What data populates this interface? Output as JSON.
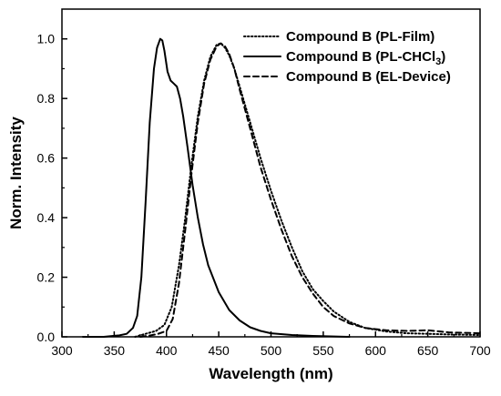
{
  "chart_data": {
    "type": "line",
    "xlabel": "Wavelength (nm)",
    "ylabel": "Norm. Intensity",
    "xlim": [
      300,
      700
    ],
    "ylim": [
      0,
      1.1
    ],
    "xticks": [
      300,
      350,
      400,
      450,
      500,
      550,
      600,
      650,
      700
    ],
    "yticks": [
      0.0,
      0.2,
      0.4,
      0.6,
      0.8,
      1.0
    ],
    "ytick_labels": [
      "0.0",
      "0.2",
      "0.4",
      "0.6",
      "0.8",
      "1.0"
    ],
    "legend_position": "top-right",
    "grid": false,
    "series": [
      {
        "name": "Compound B (PL-Film)",
        "legend_main": "Compound B (PL-Film)",
        "legend_sub": "",
        "legend_tail": "",
        "dash": "dotted",
        "x": [
          370,
          380,
          390,
          398,
          405,
          412,
          418,
          424,
          430,
          436,
          442,
          448,
          452,
          456,
          460,
          465,
          470,
          480,
          490,
          500,
          510,
          520,
          530,
          540,
          550,
          560,
          575,
          590,
          610,
          630,
          650,
          670,
          700
        ],
        "y": [
          0.0,
          0.01,
          0.02,
          0.04,
          0.1,
          0.24,
          0.4,
          0.58,
          0.74,
          0.86,
          0.94,
          0.98,
          0.985,
          0.97,
          0.945,
          0.9,
          0.84,
          0.72,
          0.6,
          0.49,
          0.39,
          0.3,
          0.22,
          0.16,
          0.12,
          0.085,
          0.05,
          0.03,
          0.018,
          0.012,
          0.01,
          0.008,
          0.006
        ]
      },
      {
        "name": "Compound B (PL-CHCl3)",
        "legend_main": "Compound B (PL-CHCl",
        "legend_sub": "3",
        "legend_tail": ")",
        "dash": "solid",
        "x": [
          320,
          340,
          355,
          362,
          368,
          372,
          376,
          380,
          384,
          388,
          391,
          394,
          396,
          398,
          401,
          404,
          407,
          410,
          413,
          416,
          420,
          425,
          430,
          435,
          440,
          450,
          460,
          470,
          480,
          490,
          500,
          520,
          540,
          575
        ],
        "y": [
          0.0,
          0.0,
          0.005,
          0.01,
          0.03,
          0.07,
          0.2,
          0.45,
          0.72,
          0.9,
          0.97,
          1.0,
          0.995,
          0.96,
          0.89,
          0.86,
          0.85,
          0.84,
          0.8,
          0.74,
          0.64,
          0.51,
          0.4,
          0.31,
          0.24,
          0.15,
          0.09,
          0.055,
          0.032,
          0.02,
          0.012,
          0.006,
          0.003,
          0.0
        ]
      },
      {
        "name": "Compound B (EL-Device)",
        "legend_main": "Compound B (EL-Device)",
        "legend_sub": "",
        "legend_tail": "",
        "dash": "dashed",
        "x": [
          375,
          385,
          392,
          400,
          406,
          412,
          418,
          424,
          430,
          436,
          442,
          448,
          452,
          456,
          460,
          465,
          470,
          480,
          490,
          500,
          510,
          520,
          530,
          540,
          550,
          560,
          575,
          590,
          610,
          630,
          650,
          670,
          700
        ],
        "y": [
          0.0,
          0.005,
          0.01,
          0.02,
          0.06,
          0.18,
          0.36,
          0.55,
          0.72,
          0.85,
          0.93,
          0.975,
          0.985,
          0.975,
          0.95,
          0.9,
          0.83,
          0.7,
          0.57,
          0.46,
          0.36,
          0.27,
          0.2,
          0.145,
          0.1,
          0.07,
          0.045,
          0.03,
          0.022,
          0.02,
          0.022,
          0.015,
          0.012
        ]
      }
    ]
  }
}
